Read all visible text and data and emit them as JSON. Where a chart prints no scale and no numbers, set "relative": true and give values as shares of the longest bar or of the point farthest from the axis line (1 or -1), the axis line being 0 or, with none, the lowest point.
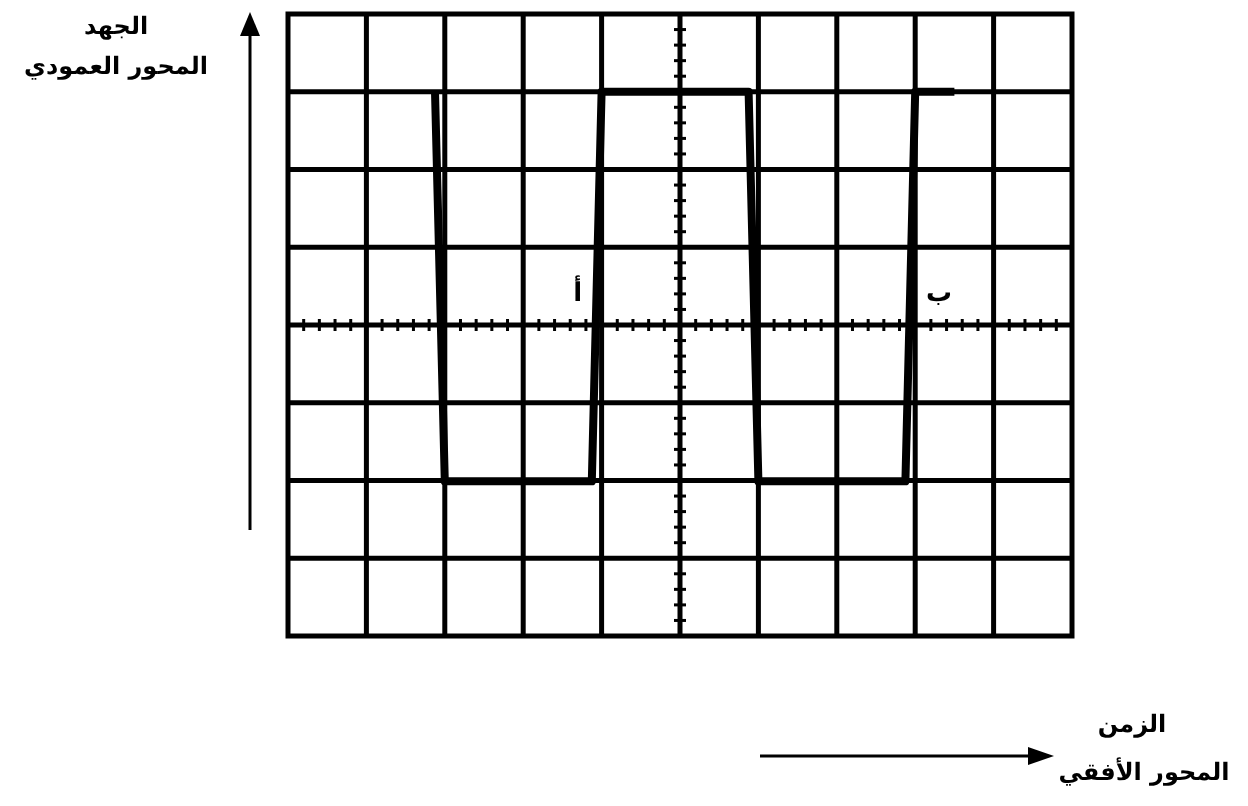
{
  "chart_data": {
    "type": "line",
    "relative": true,
    "categories": [
      null,
      null,
      null,
      null,
      null,
      null,
      null,
      null,
      null,
      null,
      null,
      null,
      null,
      null,
      null,
      null,
      null,
      null,
      null,
      null,
      null,
      null,
      null,
      null,
      null,
      null,
      null,
      null,
      null,
      null,
      null,
      null,
      null,
      null,
      null,
      null,
      null,
      null,
      null,
      null,
      null,
      null,
      null,
      null,
      null,
      null,
      null,
      null,
      null,
      null,
      null,
      null,
      null,
      null,
      null,
      null,
      null,
      null,
      null,
      null,
      null,
      null,
      null,
      null,
      null,
      null,
      null,
      null,
      null,
      null,
      null,
      null,
      null,
      null,
      null,
      null,
      null,
      null,
      null,
      null,
      null
    ],
    "values": [
      null,
      null,
      null,
      null,
      null,
      null,
      null,
      null,
      null,
      null,
      null,
      null,
      null,
      null,
      null,
      1,
      -0.67,
      -0.67,
      -0.67,
      -0.67,
      -0.67,
      -0.67,
      -0.67,
      -0.67,
      -0.67,
      -0.67,
      -0.67,
      -0.67,
      -0.67,
      -0.67,
      -0.67,
      -0.67,
      1,
      1,
      1,
      1,
      1,
      1,
      1,
      1,
      1,
      1,
      1,
      1,
      1,
      1,
      1,
      1,
      -0.67,
      -0.67,
      -0.67,
      -0.67,
      -0.67,
      -0.67,
      -0.67,
      -0.67,
      -0.67,
      -0.67,
      -0.67,
      -0.67,
      -0.67,
      -0.67,
      -0.67,
      -0.67,
      1,
      1,
      1,
      1,
      1,
      null,
      null,
      null,
      null,
      null,
      null,
      null,
      null,
      null,
      null,
      null,
      null
    ],
    "color": "#000000",
    "annotations": [
      "أ",
      "ب",
      "الجهد",
      "المحور العمودي",
      "الزمن",
      "المحور الأفقي"
    ],
    "grid": true,
    "marker": "none",
    "line_style": "solid"
  }
}
